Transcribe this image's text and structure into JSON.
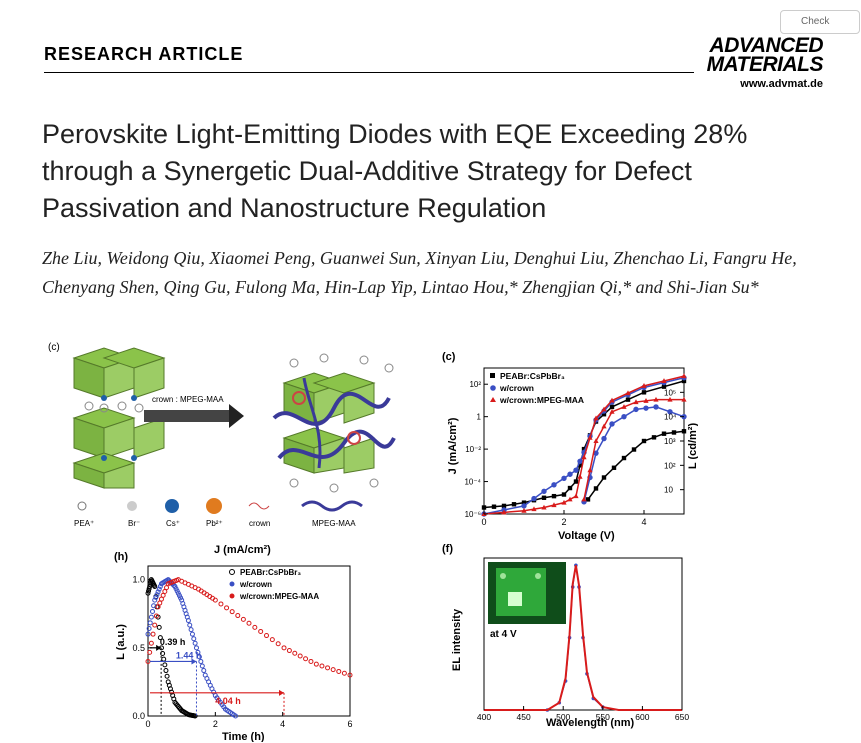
{
  "header": {
    "section": "RESEARCH ARTICLE",
    "journal_line1": "ADVANCED",
    "journal_line2": "MATERIALS",
    "journal_url": "www.advmat.de",
    "check_badge": "Check"
  },
  "title": "Perovskite Light-Emitting Diodes with EQE Exceeding 28% through a Synergetic Dual-Additive Strategy for Defect Passivation and Nanostructure Regulation",
  "authors": "Zhe Liu, Weidong Qiu, Xiaomei Peng, Guanwei Sun, Xinyan Liu, Denghui Liu, Zhenchao Li, Fangru He, Chenyang Shen, Qing Gu, Fulong Ma, Hin-Lap Yip, Lintao Hou,* Zhengjian Qi,* and Shi-Jian Su*",
  "schematic": {
    "panel": "(c)",
    "arrow_label": "crown : MPEG-MAA",
    "legend": [
      "PEA⁺",
      "Br⁻",
      "Cs⁺",
      "Pb²⁺",
      "crown",
      "MPEG-MAA"
    ],
    "colors": {
      "pea": "#777777",
      "br": "#cccccc",
      "cs": "#1f5fa8",
      "pb": "#e07b1f",
      "octahedra": "#8bc34a",
      "polymer": "#3a3a99"
    },
    "stray_label": "J (mA/cm²)"
  },
  "chart_data": [
    {
      "type": "line",
      "panel": "(c)",
      "xlabel": "Voltage (V)",
      "ylabel_left": "J (mA/cm²)",
      "ylabel_right": "L (cd/m²)",
      "x_ticks": [
        "0",
        "2",
        "4"
      ],
      "y_left_ticks": [
        "10²",
        "1",
        "10⁻²",
        "10⁻⁴",
        "10⁻⁶"
      ],
      "y_right_ticks": [
        "10⁵",
        "10⁴",
        "10³",
        "10²",
        "10"
      ],
      "xlim": [
        0,
        5
      ],
      "y_log_left": [
        -6,
        3
      ],
      "y_log_right": [
        0,
        6
      ],
      "legend": [
        "PEABr:CsPbBr₃",
        "w/crown",
        "w/crown:MPEG-MAA"
      ],
      "series": [
        {
          "name": "PEABr:CsPbBr₃",
          "color": "#000000",
          "marker": "square",
          "J": [
            [
              0,
              -5.6
            ],
            [
              0.5,
              -5.5
            ],
            [
              1,
              -5.3
            ],
            [
              1.5,
              -5.0
            ],
            [
              2,
              -4.8
            ],
            [
              2.3,
              -4.0
            ],
            [
              2.5,
              -2.0
            ],
            [
              2.8,
              -0.3
            ],
            [
              3.2,
              0.6
            ],
            [
              4,
              1.5
            ],
            [
              5,
              2.2
            ]
          ],
          "L": [
            [
              2.6,
              0.6
            ],
            [
              3.0,
              1.5
            ],
            [
              3.5,
              2.3
            ],
            [
              4,
              3.0
            ],
            [
              4.5,
              3.3
            ],
            [
              5,
              3.4
            ]
          ]
        },
        {
          "name": "w/crown",
          "color": "#3a4fc4",
          "marker": "circle",
          "J": [
            [
              0,
              -6
            ],
            [
              1,
              -5.5
            ],
            [
              1.5,
              -4.6
            ],
            [
              2,
              -3.8
            ],
            [
              2.3,
              -3.3
            ],
            [
              2.5,
              -2.2
            ],
            [
              2.8,
              -0.2
            ],
            [
              3.2,
              0.9
            ],
            [
              4,
              1.8
            ],
            [
              5,
              2.4
            ]
          ],
          "L": [
            [
              2.5,
              0.5
            ],
            [
              2.8,
              2.5
            ],
            [
              3.2,
              3.7
            ],
            [
              3.8,
              4.3
            ],
            [
              4.3,
              4.4
            ],
            [
              5,
              4.0
            ]
          ]
        },
        {
          "name": "w/crown:MPEG-MAA",
          "color": "#d81b1b",
          "marker": "triangle",
          "J": [
            [
              0,
              -6
            ],
            [
              1,
              -5.8
            ],
            [
              1.5,
              -5.6
            ],
            [
              2,
              -5.3
            ],
            [
              2.3,
              -4.9
            ],
            [
              2.5,
              -2.5
            ],
            [
              2.8,
              -0.1
            ],
            [
              3.2,
              1.0
            ],
            [
              4,
              1.9
            ],
            [
              5,
              2.5
            ]
          ],
          "L": [
            [
              2.5,
              0.6
            ],
            [
              2.8,
              3.0
            ],
            [
              3.2,
              4.2
            ],
            [
              3.8,
              4.6
            ],
            [
              4.3,
              4.7
            ],
            [
              5,
              4.7
            ]
          ]
        }
      ]
    },
    {
      "type": "line",
      "panel": "(h)",
      "xlabel": "Time (h)",
      "ylabel": "L (a.u.)",
      "top_label": "J (mA/cm²)",
      "x_ticks": [
        "0",
        "2",
        "4",
        "6"
      ],
      "y_ticks": [
        "0.0",
        "0.5",
        "1.0"
      ],
      "xlim": [
        0,
        6
      ],
      "ylim": [
        0,
        1.1
      ],
      "legend": [
        "PEABr:CsPbBr₃",
        "w/crown",
        "w/crown:MPEG-MAA"
      ],
      "annotations": [
        {
          "text": "0.39 h",
          "y": 0.5,
          "x_end": 0.39,
          "color": "#000000"
        },
        {
          "text": "1.44 h",
          "y": 0.4,
          "x_end": 1.44,
          "color": "#3a4fc4"
        },
        {
          "text": "4.04 h",
          "y": 0.17,
          "x_end": 4.04,
          "color": "#d81b1b"
        }
      ],
      "series": [
        {
          "name": "PEABr:CsPbBr₃",
          "color": "#000000",
          "points": [
            [
              0,
              0.9
            ],
            [
              0.1,
              1.0
            ],
            [
              0.2,
              0.95
            ],
            [
              0.4,
              0.5
            ],
            [
              0.6,
              0.25
            ],
            [
              0.8,
              0.1
            ],
            [
              1.0,
              0.04
            ],
            [
              1.2,
              0.01
            ],
            [
              1.4,
              0
            ]
          ]
        },
        {
          "name": "w/crown",
          "color": "#3a4fc4",
          "points": [
            [
              0,
              0.6
            ],
            [
              0.2,
              0.85
            ],
            [
              0.4,
              0.97
            ],
            [
              0.6,
              1.0
            ],
            [
              0.8,
              0.95
            ],
            [
              1.0,
              0.85
            ],
            [
              1.2,
              0.7
            ],
            [
              1.44,
              0.5
            ],
            [
              1.7,
              0.3
            ],
            [
              2.0,
              0.15
            ],
            [
              2.3,
              0.05
            ],
            [
              2.6,
              0
            ]
          ]
        },
        {
          "name": "w/crown:MPEG-MAA",
          "color": "#d81b1b",
          "points": [
            [
              0,
              0.4
            ],
            [
              0.3,
              0.8
            ],
            [
              0.6,
              0.97
            ],
            [
              0.9,
              1.0
            ],
            [
              1.5,
              0.93
            ],
            [
              2,
              0.85
            ],
            [
              3,
              0.68
            ],
            [
              4.04,
              0.5
            ],
            [
              5,
              0.38
            ],
            [
              6,
              0.3
            ]
          ]
        }
      ]
    },
    {
      "type": "line",
      "panel": "(f)",
      "xlabel": "Wavelength (nm)",
      "ylabel": "EL intensity",
      "x_ticks": [
        "400",
        "450",
        "500",
        "550",
        "600",
        "650"
      ],
      "xlim": [
        400,
        650
      ],
      "ylim": [
        0,
        1.05
      ],
      "inset_label": "at 4 V",
      "series": [
        {
          "name": "w/crown",
          "color": "#3a4fc4",
          "points": [
            [
              400,
              0
            ],
            [
              480,
              0
            ],
            [
              495,
              0.05
            ],
            [
              503,
              0.2
            ],
            [
              508,
              0.5
            ],
            [
              512,
              0.85
            ],
            [
              516,
              1.0
            ],
            [
              520,
              0.85
            ],
            [
              525,
              0.5
            ],
            [
              530,
              0.25
            ],
            [
              538,
              0.08
            ],
            [
              550,
              0.02
            ],
            [
              570,
              0
            ],
            [
              650,
              0
            ]
          ]
        },
        {
          "name": "w/crown:MPEG-MAA",
          "color": "#d81b1b",
          "points": [
            [
              400,
              0
            ],
            [
              480,
              0
            ],
            [
              495,
              0.05
            ],
            [
              503,
              0.22
            ],
            [
              508,
              0.52
            ],
            [
              512,
              0.87
            ],
            [
              516,
              1.0
            ],
            [
              520,
              0.86
            ],
            [
              525,
              0.52
            ],
            [
              530,
              0.26
            ],
            [
              538,
              0.09
            ],
            [
              550,
              0.02
            ],
            [
              570,
              0
            ],
            [
              650,
              0
            ]
          ]
        }
      ]
    }
  ]
}
